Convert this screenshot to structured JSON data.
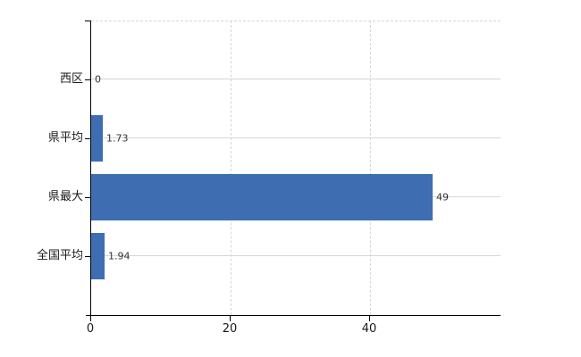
{
  "chart": {
    "background_color": "#ffffff",
    "bar_color": "#3e6eb1",
    "axis_color": "#000000",
    "horizontal_grid_color": "#d2dad2",
    "vertical_grid_color": "#d6d6d6",
    "category_label_color": "#1a1a1a",
    "tick_label_color": "#1a1a1a",
    "value_label_color": "#333333"
  },
  "chart_data": {
    "type": "bar",
    "orientation": "horizontal",
    "title": "",
    "xlabel": "",
    "ylabel": "",
    "legend": false,
    "grid": true,
    "categories": [
      "西区",
      "県平均",
      "県最大",
      "全国平均"
    ],
    "values": [
      0,
      1.73,
      49,
      1.94
    ],
    "value_labels": [
      "0",
      "1.73",
      "49",
      "1.94"
    ],
    "x_ticks": [
      0,
      20,
      40
    ],
    "x_tick_labels": [
      "0",
      "20",
      "40"
    ],
    "xlim": [
      0,
      58.7
    ]
  }
}
